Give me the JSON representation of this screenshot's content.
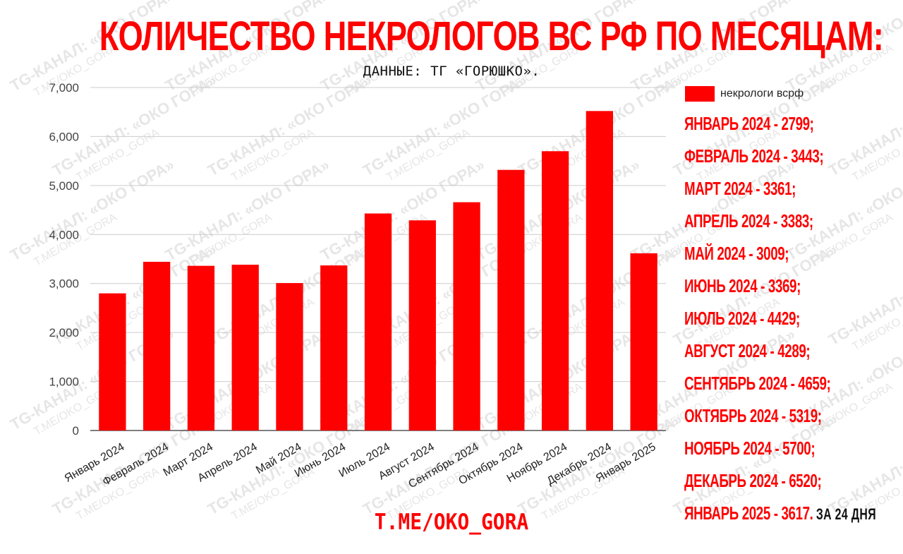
{
  "header": {
    "title": "КОЛИЧЕСТВО НЕКРОЛОГОВ  ВС РФ ПО МЕСЯЦАМ:",
    "subtitle": "ДАННЫЕ: ТГ «ГОРЮШКО»."
  },
  "chart_data": {
    "type": "bar",
    "categories": [
      "Январь 2024",
      "Февраль 2024",
      "Март 2024",
      "Апрель 2024",
      "Май 2024",
      "Июнь 2024",
      "Июль 2024",
      "Август 2024",
      "Сентябрь 2024",
      "Октябрь 2024",
      "Ноябрь 2024",
      "Декабрь 2024",
      "Январь 2025"
    ],
    "series": [
      {
        "name": "некрологи всрф",
        "values": [
          2799,
          3443,
          3361,
          3383,
          3009,
          3369,
          4429,
          4289,
          4659,
          5319,
          5700,
          6520,
          3617
        ]
      }
    ],
    "yticks": [
      "0",
      "1,000",
      "2,000",
      "3,000",
      "4,000",
      "5,000",
      "6,000",
      "7,000"
    ],
    "ylim": [
      0,
      7000
    ],
    "grid": true,
    "legend": "top-right",
    "bar_color": "#ff0000"
  },
  "list": {
    "items": [
      "ЯНВАРЬ 2024 -  2799;",
      "ФЕВРАЛЬ 2024 - 3443;",
      "МАРТ 2024 - 3361;",
      "АПРЕЛЬ 2024 - 3383;",
      "МАЙ 2024 - 3009;",
      "ИЮНЬ 2024 - 3369;",
      "ИЮЛЬ 2024 - 4429;",
      "АВГУСТ 2024 - 4289;",
      "СЕНТЯБРЬ 2024 - 4659;",
      "ОКТЯБРЬ 2024 - 5319;",
      "НОЯБРЬ 2024 - 5700;",
      "ДЕКАБРЬ 2024 - 6520;",
      "ЯНВАРЬ 2025 - 3617."
    ],
    "last_note": "ЗА 24 ДНЯ"
  },
  "footer": {
    "link": "T.ME/OKO_GORA"
  },
  "watermark": {
    "line1": "TG-КАНАЛ: «ОКО ГОРА»",
    "line2": "T.ME/OKO_GORA",
    "color": "#e6e6e6"
  }
}
